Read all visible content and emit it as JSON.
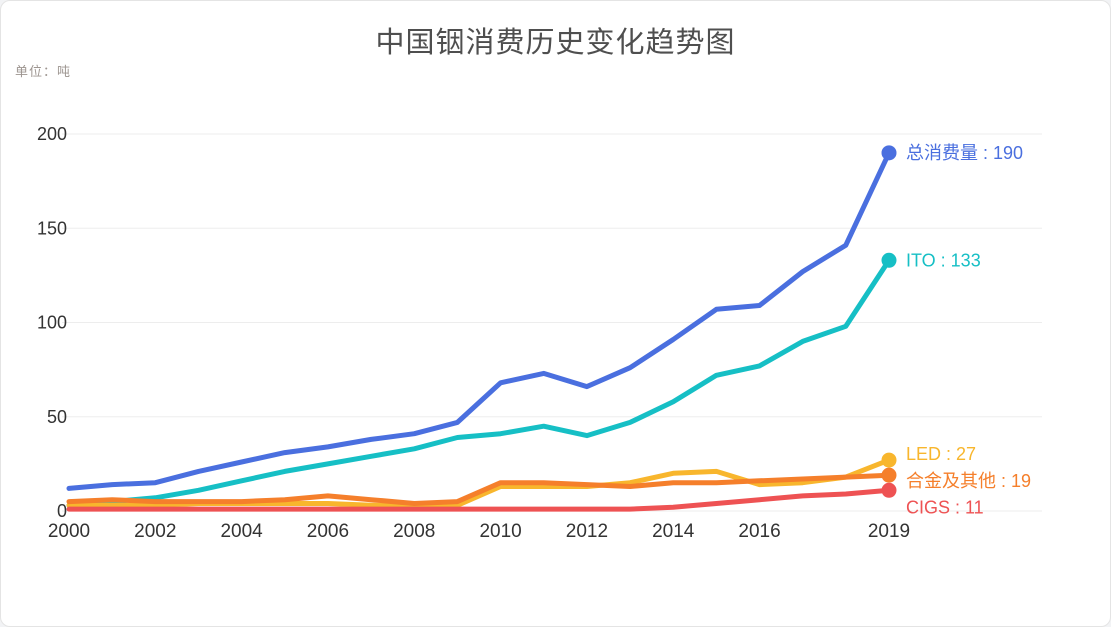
{
  "title": "中国铟消费历史变化趋势图",
  "unit_label": "单位：吨",
  "colors": {
    "title_text": "#4f4f4f",
    "unit_text": "#9d9590",
    "axis_text": "#333333",
    "grid_line": "#ededed",
    "card_background": "#ffffff",
    "page_background": "#f2f3f5",
    "card_border": "#e4e4e4"
  },
  "chart_data": {
    "type": "line",
    "title": "中国铟消费历史变化趋势图",
    "unit": "吨",
    "xlabel": "",
    "ylabel": "",
    "xlim": [
      2000,
      2019
    ],
    "ylim": [
      0,
      200
    ],
    "grid": "horizontal",
    "legend_position": "end-of-line-labels",
    "x": [
      2000,
      2001,
      2002,
      2003,
      2004,
      2005,
      2006,
      2007,
      2008,
      2009,
      2010,
      2011,
      2012,
      2013,
      2014,
      2015,
      2016,
      2017,
      2018,
      2019
    ],
    "x_ticks": [
      2000,
      2002,
      2004,
      2006,
      2008,
      2010,
      2012,
      2014,
      2016,
      2019
    ],
    "x_tick_labels": [
      "2000",
      "2002",
      "2004",
      "2006",
      "2008",
      "2010",
      "2012",
      "2014",
      "2016",
      "2019"
    ],
    "y_ticks": [
      0,
      50,
      100,
      150,
      200
    ],
    "y_tick_labels": [
      "0",
      "50",
      "100",
      "150",
      "200"
    ],
    "series": [
      {
        "id": "total",
        "name": "总消费量",
        "label": "总消费量 : 190",
        "end_value": 190,
        "color": "#4a6fdf",
        "label_dy": 0,
        "values": [
          12,
          14,
          15,
          21,
          26,
          31,
          34,
          38,
          41,
          47,
          68,
          73,
          66,
          76,
          91,
          107,
          109,
          127,
          141,
          190
        ]
      },
      {
        "id": "ito",
        "name": "ITO",
        "label": "ITO : 133",
        "end_value": 133,
        "color": "#16bfc5",
        "label_dy": 0,
        "values": [
          3,
          5,
          7,
          11,
          16,
          21,
          25,
          29,
          33,
          39,
          41,
          45,
          40,
          47,
          58,
          72,
          77,
          90,
          98,
          133
        ]
      },
      {
        "id": "led",
        "name": "LED",
        "label": "LED : 27",
        "end_value": 27,
        "color": "#f8b62d",
        "label_dy": -6,
        "values": [
          3,
          3,
          3,
          4,
          4,
          4,
          4,
          3,
          3,
          3,
          13,
          13,
          13,
          15,
          20,
          21,
          14,
          15,
          18,
          27
        ]
      },
      {
        "id": "alloy",
        "name": "合金及其他",
        "label": "合金及其他 : 19",
        "end_value": 19,
        "color": "#f57f2b",
        "label_dy": 6,
        "values": [
          5,
          6,
          5,
          5,
          5,
          6,
          8,
          6,
          4,
          5,
          15,
          15,
          14,
          13,
          15,
          15,
          16,
          17,
          18,
          19
        ]
      },
      {
        "id": "cigs",
        "name": "CIGS",
        "label": "CIGS : 11",
        "end_value": 11,
        "color": "#ee5253",
        "label_dy": 17,
        "values": [
          1,
          1,
          1,
          1,
          1,
          1,
          1,
          1,
          1,
          1,
          1,
          1,
          1,
          1,
          2,
          4,
          6,
          8,
          9,
          11
        ]
      }
    ]
  }
}
